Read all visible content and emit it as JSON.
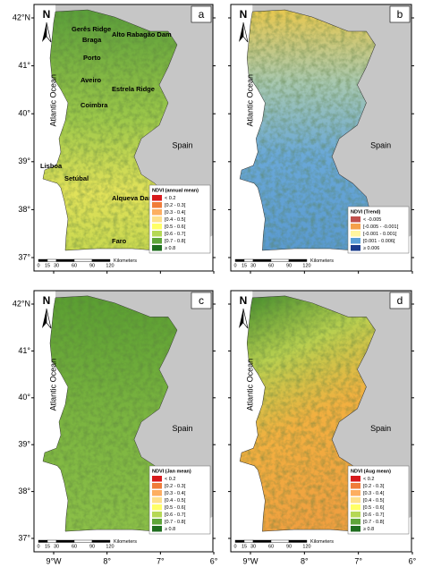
{
  "latitude_labels": [
    "42°N",
    "41°",
    "40°",
    "39°",
    "38°",
    "37°"
  ],
  "longitude_labels": [
    "9°W",
    "8°",
    "7°",
    "6°"
  ],
  "panels": [
    {
      "letter": "a",
      "north": "N",
      "ocean_label": "Atlantic Ocean",
      "country_label": "Spain",
      "scale_labels": [
        "0",
        "15",
        "30",
        "60",
        "90",
        "120"
      ],
      "scale_unit": "Kilometers",
      "legend_title": "NDVI (annual mean)",
      "legend": [
        {
          "label": "< 0.2",
          "color": "#d7191c"
        },
        {
          "label": "[0.2 - 0.3[",
          "color": "#f07c3a"
        },
        {
          "label": "[0.3 - 0.4[",
          "color": "#fdae61"
        },
        {
          "label": "[0.4 - 0.5[",
          "color": "#fee08b"
        },
        {
          "label": "[0.5 - 0.6[",
          "color": "#ffff66"
        },
        {
          "label": "[0.6 - 0.7[",
          "color": "#b5d855"
        },
        {
          "label": "[0.7 - 0.8[",
          "color": "#5fa63a"
        },
        {
          "label": "≥ 0.8",
          "color": "#1f6e1f"
        }
      ],
      "places": [
        "Gerês Ridge",
        "Alto Rabagão Dam",
        "Braga",
        "Porto",
        "Aveiro",
        "Estrela Ridge",
        "Coimbra",
        "Lisboa",
        "Setúbal",
        "Alqueva Dam",
        "Faro"
      ]
    },
    {
      "letter": "b",
      "north": "N",
      "ocean_label": "Atlantic Ocean",
      "country_label": "Spain",
      "scale_labels": [
        "0",
        "15",
        "30",
        "60",
        "90",
        "120"
      ],
      "scale_unit": "Kilometers",
      "legend_title": "NDVI (Trend)",
      "legend": [
        {
          "label": "< -0.005",
          "color": "#c0504d"
        },
        {
          "label": "[-0.005 - -0.001[",
          "color": "#f5a04a"
        },
        {
          "label": "[-0.001 - 0.001[",
          "color": "#fff6a0"
        },
        {
          "label": "[0.001 - 0.006[",
          "color": "#5aa0d8"
        },
        {
          "label": "≥ 0.006",
          "color": "#1a3c8c"
        }
      ],
      "places": []
    },
    {
      "letter": "c",
      "north": "N",
      "ocean_label": "Atlantic Ocean",
      "country_label": "Spain",
      "scale_labels": [
        "0",
        "15",
        "30",
        "60",
        "90",
        "120"
      ],
      "scale_unit": "Kilometers",
      "legend_title": "NDVI (Jan mean)",
      "legend": [
        {
          "label": "< 0.2",
          "color": "#d7191c"
        },
        {
          "label": "[0.2 - 0.3[",
          "color": "#f07c3a"
        },
        {
          "label": "[0.3 - 0.4[",
          "color": "#fdae61"
        },
        {
          "label": "[0.4 - 0.5[",
          "color": "#fee08b"
        },
        {
          "label": "[0.5 - 0.6[",
          "color": "#ffff66"
        },
        {
          "label": "[0.6 - 0.7[",
          "color": "#b5d855"
        },
        {
          "label": "[0.7 - 0.8[",
          "color": "#5fa63a"
        },
        {
          "label": "≥ 0.8",
          "color": "#1f6e1f"
        }
      ],
      "places": []
    },
    {
      "letter": "d",
      "north": "N",
      "ocean_label": "Atlantic Ocean",
      "country_label": "Spain",
      "scale_labels": [
        "0",
        "15",
        "30",
        "60",
        "90",
        "120"
      ],
      "scale_unit": "Kilometers",
      "legend_title": "NDVI (Aug mean)",
      "legend": [
        {
          "label": "< 0.2",
          "color": "#d7191c"
        },
        {
          "label": "[0.2 - 0.3[",
          "color": "#f07c3a"
        },
        {
          "label": "[0.3 - 0.4[",
          "color": "#fdae61"
        },
        {
          "label": "[0.4 - 0.5[",
          "color": "#fee08b"
        },
        {
          "label": "[0.5 - 0.6[",
          "color": "#ffff66"
        },
        {
          "label": "[0.6 - 0.7[",
          "color": "#b5d855"
        },
        {
          "label": "[0.7 - 0.8[",
          "color": "#5fa63a"
        },
        {
          "label": "≥ 0.8",
          "color": "#1f6e1f"
        }
      ],
      "places": []
    }
  ]
}
